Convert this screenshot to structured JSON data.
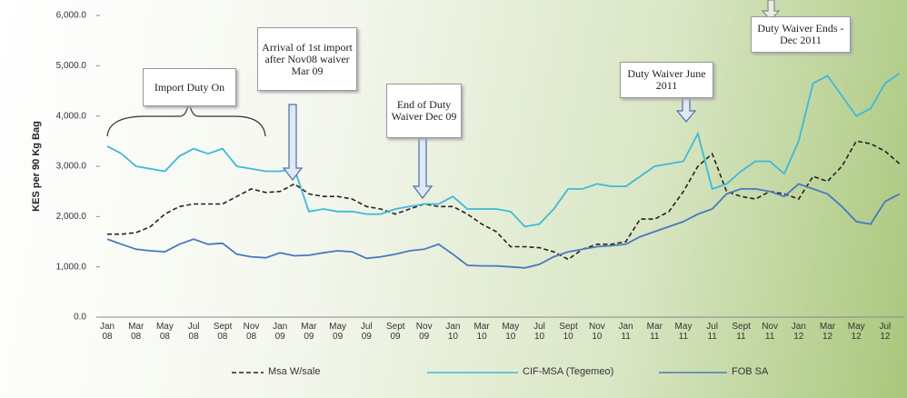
{
  "chart_data": {
    "type": "line",
    "y_label": "KES per 90 Kg Bag",
    "categories": [
      "Jan 08",
      null,
      "Mar 08",
      null,
      "May 08",
      null,
      "Jul 08",
      null,
      "Sept 08",
      null,
      "Nov 08",
      null,
      "Jan 09",
      null,
      "Mar 09",
      null,
      "May 09",
      null,
      "Jul 09",
      null,
      "Sept 09",
      null,
      "Nov 09",
      null,
      "Jan 10",
      null,
      "Mar 10",
      null,
      "May 10",
      null,
      "Jul 10",
      null,
      "Sept 10",
      null,
      "Nov 10",
      null,
      "Jan 11",
      null,
      "Mar 11",
      null,
      "May 11",
      null,
      "Jul 11",
      null,
      "Sept 11",
      null,
      "Nov 11",
      null,
      "Jan 12",
      null,
      "Mar 12",
      null,
      "May 12",
      null,
      "Jul 12",
      null
    ],
    "series": [
      {
        "name": "Msa W/sale",
        "color": "#222222",
        "dashed": true,
        "values": [
          1650,
          1650,
          1680,
          1800,
          2050,
          2200,
          2250,
          2250,
          2250,
          2400,
          2550,
          2480,
          2500,
          2650,
          2450,
          2400,
          2400,
          2350,
          2200,
          2150,
          2050,
          2150,
          2250,
          2200,
          2200,
          2050,
          1850,
          1700,
          1400,
          1400,
          1380,
          1300,
          1150,
          1350,
          1450,
          1450,
          1500,
          1950,
          1950,
          2100,
          2500,
          3000,
          3250,
          2500,
          2400,
          2350,
          2500,
          2450,
          2350,
          2800,
          2700,
          3000,
          3500,
          3450,
          3300,
          3050
        ]
      },
      {
        "name": "CIF-MSA (Tegemeo)",
        "color": "#3fb8d8",
        "dashed": false,
        "values": [
          3400,
          3250,
          3000,
          2950,
          2900,
          3200,
          3350,
          3250,
          3350,
          3000,
          2950,
          2900,
          2900,
          2950,
          2100,
          2150,
          2100,
          2100,
          2050,
          2050,
          2150,
          2200,
          2250,
          2250,
          2400,
          2150,
          2150,
          2150,
          2100,
          1800,
          1850,
          2150,
          2550,
          2550,
          2650,
          2600,
          2600,
          2800,
          3000,
          3050,
          3100,
          3650,
          2550,
          2650,
          2900,
          3100,
          3100,
          2850,
          3500,
          4650,
          4800,
          4400,
          4000,
          4150,
          4650,
          4850
        ]
      },
      {
        "name": "FOB SA",
        "color": "#4a78c0",
        "dashed": false,
        "values": [
          1550,
          1450,
          1350,
          1320,
          1300,
          1450,
          1550,
          1450,
          1470,
          1250,
          1200,
          1180,
          1280,
          1220,
          1230,
          1280,
          1320,
          1300,
          1170,
          1200,
          1250,
          1320,
          1350,
          1450,
          1250,
          1030,
          1020,
          1020,
          1000,
          980,
          1050,
          1200,
          1300,
          1350,
          1400,
          1420,
          1450,
          1600,
          1700,
          1800,
          1900,
          2050,
          2150,
          2450,
          2550,
          2550,
          2500,
          2400,
          2650,
          2550,
          2450,
          2200,
          1900,
          1850,
          2300,
          2450
        ]
      }
    ],
    "ylim": [
      0,
      6000
    ],
    "yticks": [
      {
        "value": 0,
        "label": "0.0"
      },
      {
        "value": 1000,
        "label": "1,000.0"
      },
      {
        "value": 2000,
        "label": "2,000.0"
      },
      {
        "value": 3000,
        "label": "3,000.0"
      },
      {
        "value": 4000,
        "label": "4,000.0"
      },
      {
        "value": 5000,
        "label": "5,000.0"
      },
      {
        "value": 6000,
        "label": "6,000.0"
      }
    ],
    "annotations": [
      "Import Duty On",
      "Arrival of 1st import after Nov08 waiver Mar 09",
      "End of Duty Waiver Dec 09",
      "Duty Waiver June 2011",
      "Duty Waiver Ends -Dec 2011"
    ]
  }
}
